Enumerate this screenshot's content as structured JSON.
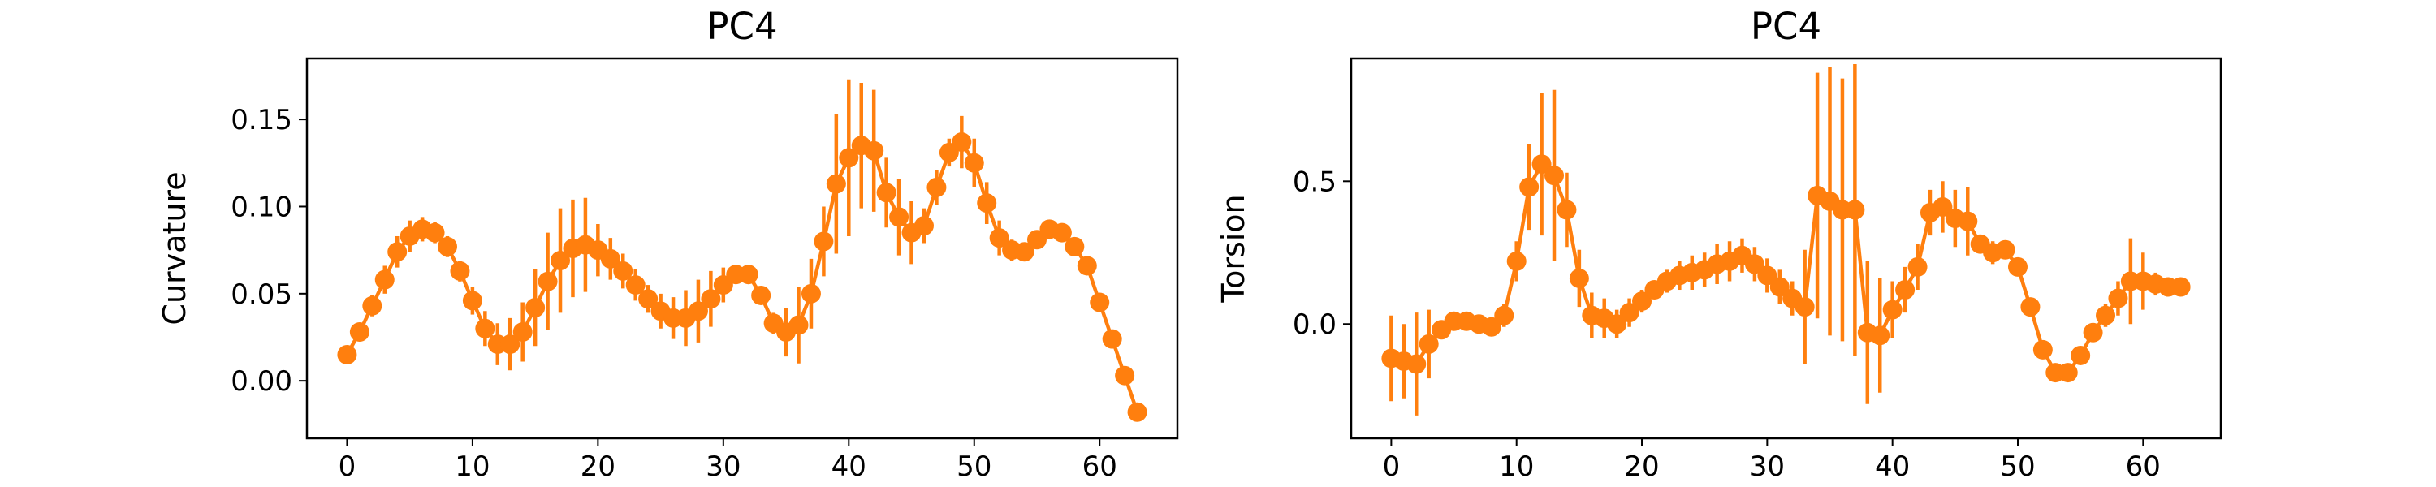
{
  "chart_data": [
    {
      "type": "line",
      "title": "PC4",
      "xlabel": "",
      "ylabel": "Curvature",
      "xlim": [
        -3.2,
        66.2
      ],
      "ylim": [
        -0.033,
        0.185
      ],
      "xticks": [
        0,
        10,
        20,
        30,
        40,
        50,
        60
      ],
      "xtick_labels": [
        "0",
        "10",
        "20",
        "30",
        "40",
        "50",
        "60"
      ],
      "yticks": [
        0.0,
        0.05,
        0.1,
        0.15
      ],
      "ytick_labels": [
        "0.00",
        "0.05",
        "0.10",
        "0.15"
      ],
      "grid": false,
      "color": "#ff7f0e",
      "series": [
        {
          "x": [
            0,
            1,
            2,
            3,
            4,
            5,
            6,
            7,
            8,
            9,
            10,
            11,
            12,
            13,
            14,
            15,
            16,
            17,
            18,
            19,
            20,
            21,
            22,
            23,
            24,
            25,
            26,
            27,
            28,
            29,
            30,
            31,
            32,
            33,
            34,
            35,
            36,
            37,
            38,
            39,
            40,
            41,
            42,
            43,
            44,
            45,
            46,
            47,
            48,
            49,
            50,
            51,
            52,
            53,
            54,
            55,
            56,
            57,
            58,
            59,
            60,
            61,
            62,
            63
          ],
          "y": [
            0.015,
            0.028,
            0.043,
            0.058,
            0.074,
            0.083,
            0.087,
            0.085,
            0.077,
            0.063,
            0.046,
            0.03,
            0.021,
            0.021,
            0.028,
            0.042,
            0.057,
            0.069,
            0.076,
            0.078,
            0.075,
            0.07,
            0.063,
            0.055,
            0.047,
            0.04,
            0.036,
            0.036,
            0.04,
            0.047,
            0.055,
            0.061,
            0.061,
            0.049,
            0.033,
            0.028,
            0.032,
            0.05,
            0.08,
            0.113,
            0.128,
            0.135,
            0.132,
            0.108,
            0.094,
            0.085,
            0.089,
            0.111,
            0.131,
            0.137,
            0.125,
            0.102,
            0.082,
            0.075,
            0.074,
            0.081,
            0.087,
            0.085,
            0.077,
            0.066,
            0.045,
            0.024,
            0.003,
            -0.018
          ],
          "error": [
            0.003,
            0.004,
            0.006,
            0.008,
            0.009,
            0.009,
            0.007,
            0.006,
            0.006,
            0.006,
            0.008,
            0.01,
            0.012,
            0.015,
            0.017,
            0.022,
            0.028,
            0.03,
            0.028,
            0.027,
            0.015,
            0.012,
            0.01,
            0.009,
            0.008,
            0.01,
            0.012,
            0.016,
            0.018,
            0.016,
            0.01,
            0.005,
            0.005,
            0.003,
            0.006,
            0.014,
            0.022,
            0.02,
            0.02,
            0.04,
            0.045,
            0.036,
            0.035,
            0.02,
            0.022,
            0.018,
            0.01,
            0.01,
            0.008,
            0.015,
            0.014,
            0.012,
            0.01,
            0.006,
            0.005,
            0.005,
            0.004,
            0.003,
            0.003,
            0.003,
            0.003,
            0.003,
            0.003,
            0.003
          ]
        }
      ]
    },
    {
      "type": "line",
      "title": "PC4",
      "xlabel": "",
      "ylabel": "Torsion",
      "xlim": [
        -3.2,
        66.2
      ],
      "ylim": [
        -0.4,
        0.93
      ],
      "xticks": [
        0,
        10,
        20,
        30,
        40,
        50,
        60
      ],
      "xtick_labels": [
        "0",
        "10",
        "20",
        "30",
        "40",
        "50",
        "60"
      ],
      "yticks": [
        0.0,
        0.5
      ],
      "ytick_labels": [
        "0.0",
        "0.5"
      ],
      "grid": false,
      "color": "#ff7f0e",
      "series": [
        {
          "x": [
            0,
            1,
            2,
            3,
            4,
            5,
            6,
            7,
            8,
            9,
            10,
            11,
            12,
            13,
            14,
            15,
            16,
            17,
            18,
            19,
            20,
            21,
            22,
            23,
            24,
            25,
            26,
            27,
            28,
            29,
            30,
            31,
            32,
            33,
            34,
            35,
            36,
            37,
            38,
            39,
            40,
            41,
            42,
            43,
            44,
            45,
            46,
            47,
            48,
            49,
            50,
            51,
            52,
            53,
            54,
            55,
            56,
            57,
            58,
            59,
            60,
            61,
            62,
            63
          ],
          "y": [
            -0.12,
            -0.13,
            -0.14,
            -0.07,
            -0.02,
            0.01,
            0.01,
            0.0,
            -0.01,
            0.03,
            0.22,
            0.48,
            0.56,
            0.52,
            0.4,
            0.16,
            0.03,
            0.02,
            0.0,
            0.04,
            0.08,
            0.12,
            0.15,
            0.17,
            0.18,
            0.19,
            0.21,
            0.22,
            0.24,
            0.21,
            0.17,
            0.13,
            0.09,
            0.06,
            0.45,
            0.43,
            0.4,
            0.4,
            -0.03,
            -0.04,
            0.05,
            0.12,
            0.2,
            0.39,
            0.41,
            0.37,
            0.36,
            0.28,
            0.25,
            0.26,
            0.2,
            0.06,
            -0.09,
            -0.17,
            -0.17,
            -0.11,
            -0.03,
            0.03,
            0.09,
            0.15,
            0.15,
            0.14,
            0.13,
            0.13
          ],
          "error": [
            0.15,
            0.13,
            0.18,
            0.12,
            0.03,
            0.02,
            0.02,
            0.01,
            0.02,
            0.04,
            0.07,
            0.15,
            0.25,
            0.3,
            0.13,
            0.1,
            0.08,
            0.07,
            0.05,
            0.05,
            0.04,
            0.03,
            0.04,
            0.05,
            0.06,
            0.06,
            0.07,
            0.07,
            0.06,
            0.06,
            0.06,
            0.06,
            0.06,
            0.2,
            0.43,
            0.47,
            0.46,
            0.51,
            0.25,
            0.2,
            0.1,
            0.08,
            0.08,
            0.08,
            0.09,
            0.1,
            0.12,
            0.03,
            0.04,
            0.03,
            0.03,
            0.03,
            0.03,
            0.02,
            0.02,
            0.02,
            0.03,
            0.04,
            0.06,
            0.15,
            0.1,
            0.04,
            0.03,
            0.03
          ]
        }
      ]
    }
  ]
}
